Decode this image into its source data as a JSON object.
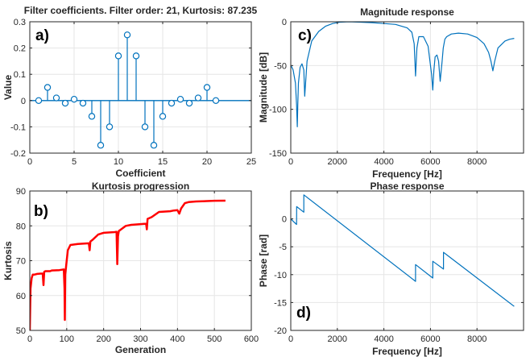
{
  "chart_data": [
    {
      "id": "a",
      "type": "stem",
      "panel_letter": "a)",
      "title": "Filter coefficients. Filter order: 21, Kurtosis: 87.235",
      "xlabel": "Coefficient",
      "ylabel": "Value",
      "xlim": [
        0,
        25
      ],
      "ylim": [
        -0.2,
        0.3
      ],
      "xticks": [
        0,
        5,
        10,
        15,
        20,
        25
      ],
      "yticks": [
        -0.2,
        -0.1,
        0,
        0.1,
        0.2,
        0.3
      ],
      "ytick_labels": [
        "-0.2",
        "-0.1",
        "0",
        "0.1",
        "0.2",
        "0.3"
      ],
      "grid": true,
      "color": "#0072BD",
      "x": [
        1,
        2,
        3,
        4,
        5,
        6,
        7,
        8,
        9,
        10,
        11,
        12,
        13,
        14,
        15,
        16,
        17,
        18,
        19,
        20,
        21
      ],
      "values": [
        0.0,
        0.05,
        0.01,
        -0.01,
        0.005,
        -0.01,
        -0.06,
        -0.17,
        -0.1,
        0.17,
        0.25,
        0.17,
        -0.1,
        -0.17,
        -0.06,
        -0.01,
        0.005,
        -0.01,
        0.01,
        0.05,
        0.0
      ]
    },
    {
      "id": "b",
      "type": "line",
      "panel_letter": "b)",
      "title": "Kurtosis progression",
      "xlabel": "Generation",
      "ylabel": "Kurtosis",
      "xlim": [
        0,
        600
      ],
      "ylim": [
        50,
        90
      ],
      "xticks": [
        0,
        100,
        200,
        300,
        400,
        500,
        600
      ],
      "yticks": [
        50,
        60,
        70,
        80,
        90
      ],
      "grid": true,
      "color": "#FF0000",
      "x": [
        0,
        2,
        5,
        8,
        12,
        20,
        30,
        35,
        37,
        39,
        42,
        55,
        60,
        80,
        92,
        94,
        95,
        96,
        98,
        100,
        103,
        110,
        130,
        160,
        162,
        164,
        170,
        185,
        200,
        230,
        235,
        237,
        239,
        241,
        245,
        260,
        275,
        300,
        310,
        315,
        317,
        319,
        330,
        350,
        380,
        390,
        400,
        405,
        410,
        420,
        430,
        450,
        480,
        500,
        530
      ],
      "values": [
        50,
        62,
        65,
        66,
        66,
        66.2,
        66.3,
        66.3,
        63,
        66.8,
        67,
        67,
        67.2,
        67.3,
        67.5,
        62,
        53,
        66,
        68,
        70,
        73,
        74.5,
        74.8,
        75,
        73,
        75.5,
        76,
        77.5,
        78,
        78.2,
        78.3,
        69,
        77,
        78.5,
        78.8,
        80,
        80.3,
        80.5,
        80.6,
        80.6,
        79,
        82,
        82.5,
        84,
        84.2,
        84.4,
        84.5,
        83.5,
        85,
        86.5,
        86.8,
        87,
        87.1,
        87.2,
        87.235
      ]
    },
    {
      "id": "c",
      "type": "line",
      "panel_letter": "c)",
      "title": "Magnitude response",
      "xlabel": "Frequency [Hz]",
      "ylabel": "Magnitude [dB]",
      "xlim": [
        0,
        10000
      ],
      "ylim": [
        -150,
        0
      ],
      "xticks": [
        0,
        2000,
        4000,
        6000,
        8000
      ],
      "xtick_labels": [
        "0",
        "2000",
        "4000",
        "6000",
        "8000"
      ],
      "yticks": [
        -150,
        -100,
        -50,
        0
      ],
      "grid": true,
      "color": "#0072BD",
      "x": [
        0,
        50,
        100,
        200,
        250,
        280,
        300,
        330,
        400,
        480,
        560,
        600,
        700,
        900,
        1200,
        1500,
        1800,
        2100,
        2500,
        3000,
        3500,
        4000,
        4500,
        5000,
        5200,
        5300,
        5360,
        5420,
        5500,
        5700,
        5900,
        6050,
        6100,
        6150,
        6200,
        6280,
        6350,
        6420,
        6500,
        6550,
        6620,
        6700,
        6900,
        7200,
        7600,
        8000,
        8300,
        8500,
        8600,
        8680,
        8760,
        8900,
        9200,
        9400,
        9600
      ],
      "values": [
        -50,
        -52,
        -55,
        -70,
        -95,
        -120,
        -95,
        -70,
        -52,
        -48,
        -55,
        -85,
        -45,
        -22,
        -11,
        -5,
        -2,
        -0.5,
        0,
        -0.5,
        -1,
        -2,
        -3,
        -7,
        -12,
        -25,
        -62,
        -30,
        -17,
        -17,
        -28,
        -60,
        -78,
        -55,
        -40,
        -38,
        -45,
        -68,
        -45,
        -30,
        -20,
        -17,
        -14,
        -13,
        -14,
        -18,
        -25,
        -35,
        -45,
        -56,
        -45,
        -30,
        -22,
        -20,
        -19
      ]
    },
    {
      "id": "d",
      "type": "line",
      "panel_letter": "d)",
      "title": "Phase response",
      "xlabel": "Frequency [Hz]",
      "ylabel": "Phase [rad]",
      "xlim": [
        0,
        10000
      ],
      "ylim": [
        -20,
        5
      ],
      "xticks": [
        0,
        2000,
        4000,
        6000,
        8000
      ],
      "xtick_labels": [
        "0",
        "2000",
        "4000",
        "6000",
        "8000"
      ],
      "yticks": [
        -20,
        -15,
        -10,
        -5,
        0
      ],
      "grid": true,
      "color": "#0072BD",
      "x": [
        0,
        120,
        250,
        251,
        560,
        561,
        5360,
        5361,
        6100,
        6101,
        6560,
        6561,
        9600
      ],
      "values": [
        0,
        -0.5,
        -1,
        2.2,
        1.2,
        4.3,
        -11.2,
        -8.2,
        -10.6,
        -7.6,
        -9,
        -6,
        -15.7
      ]
    }
  ]
}
